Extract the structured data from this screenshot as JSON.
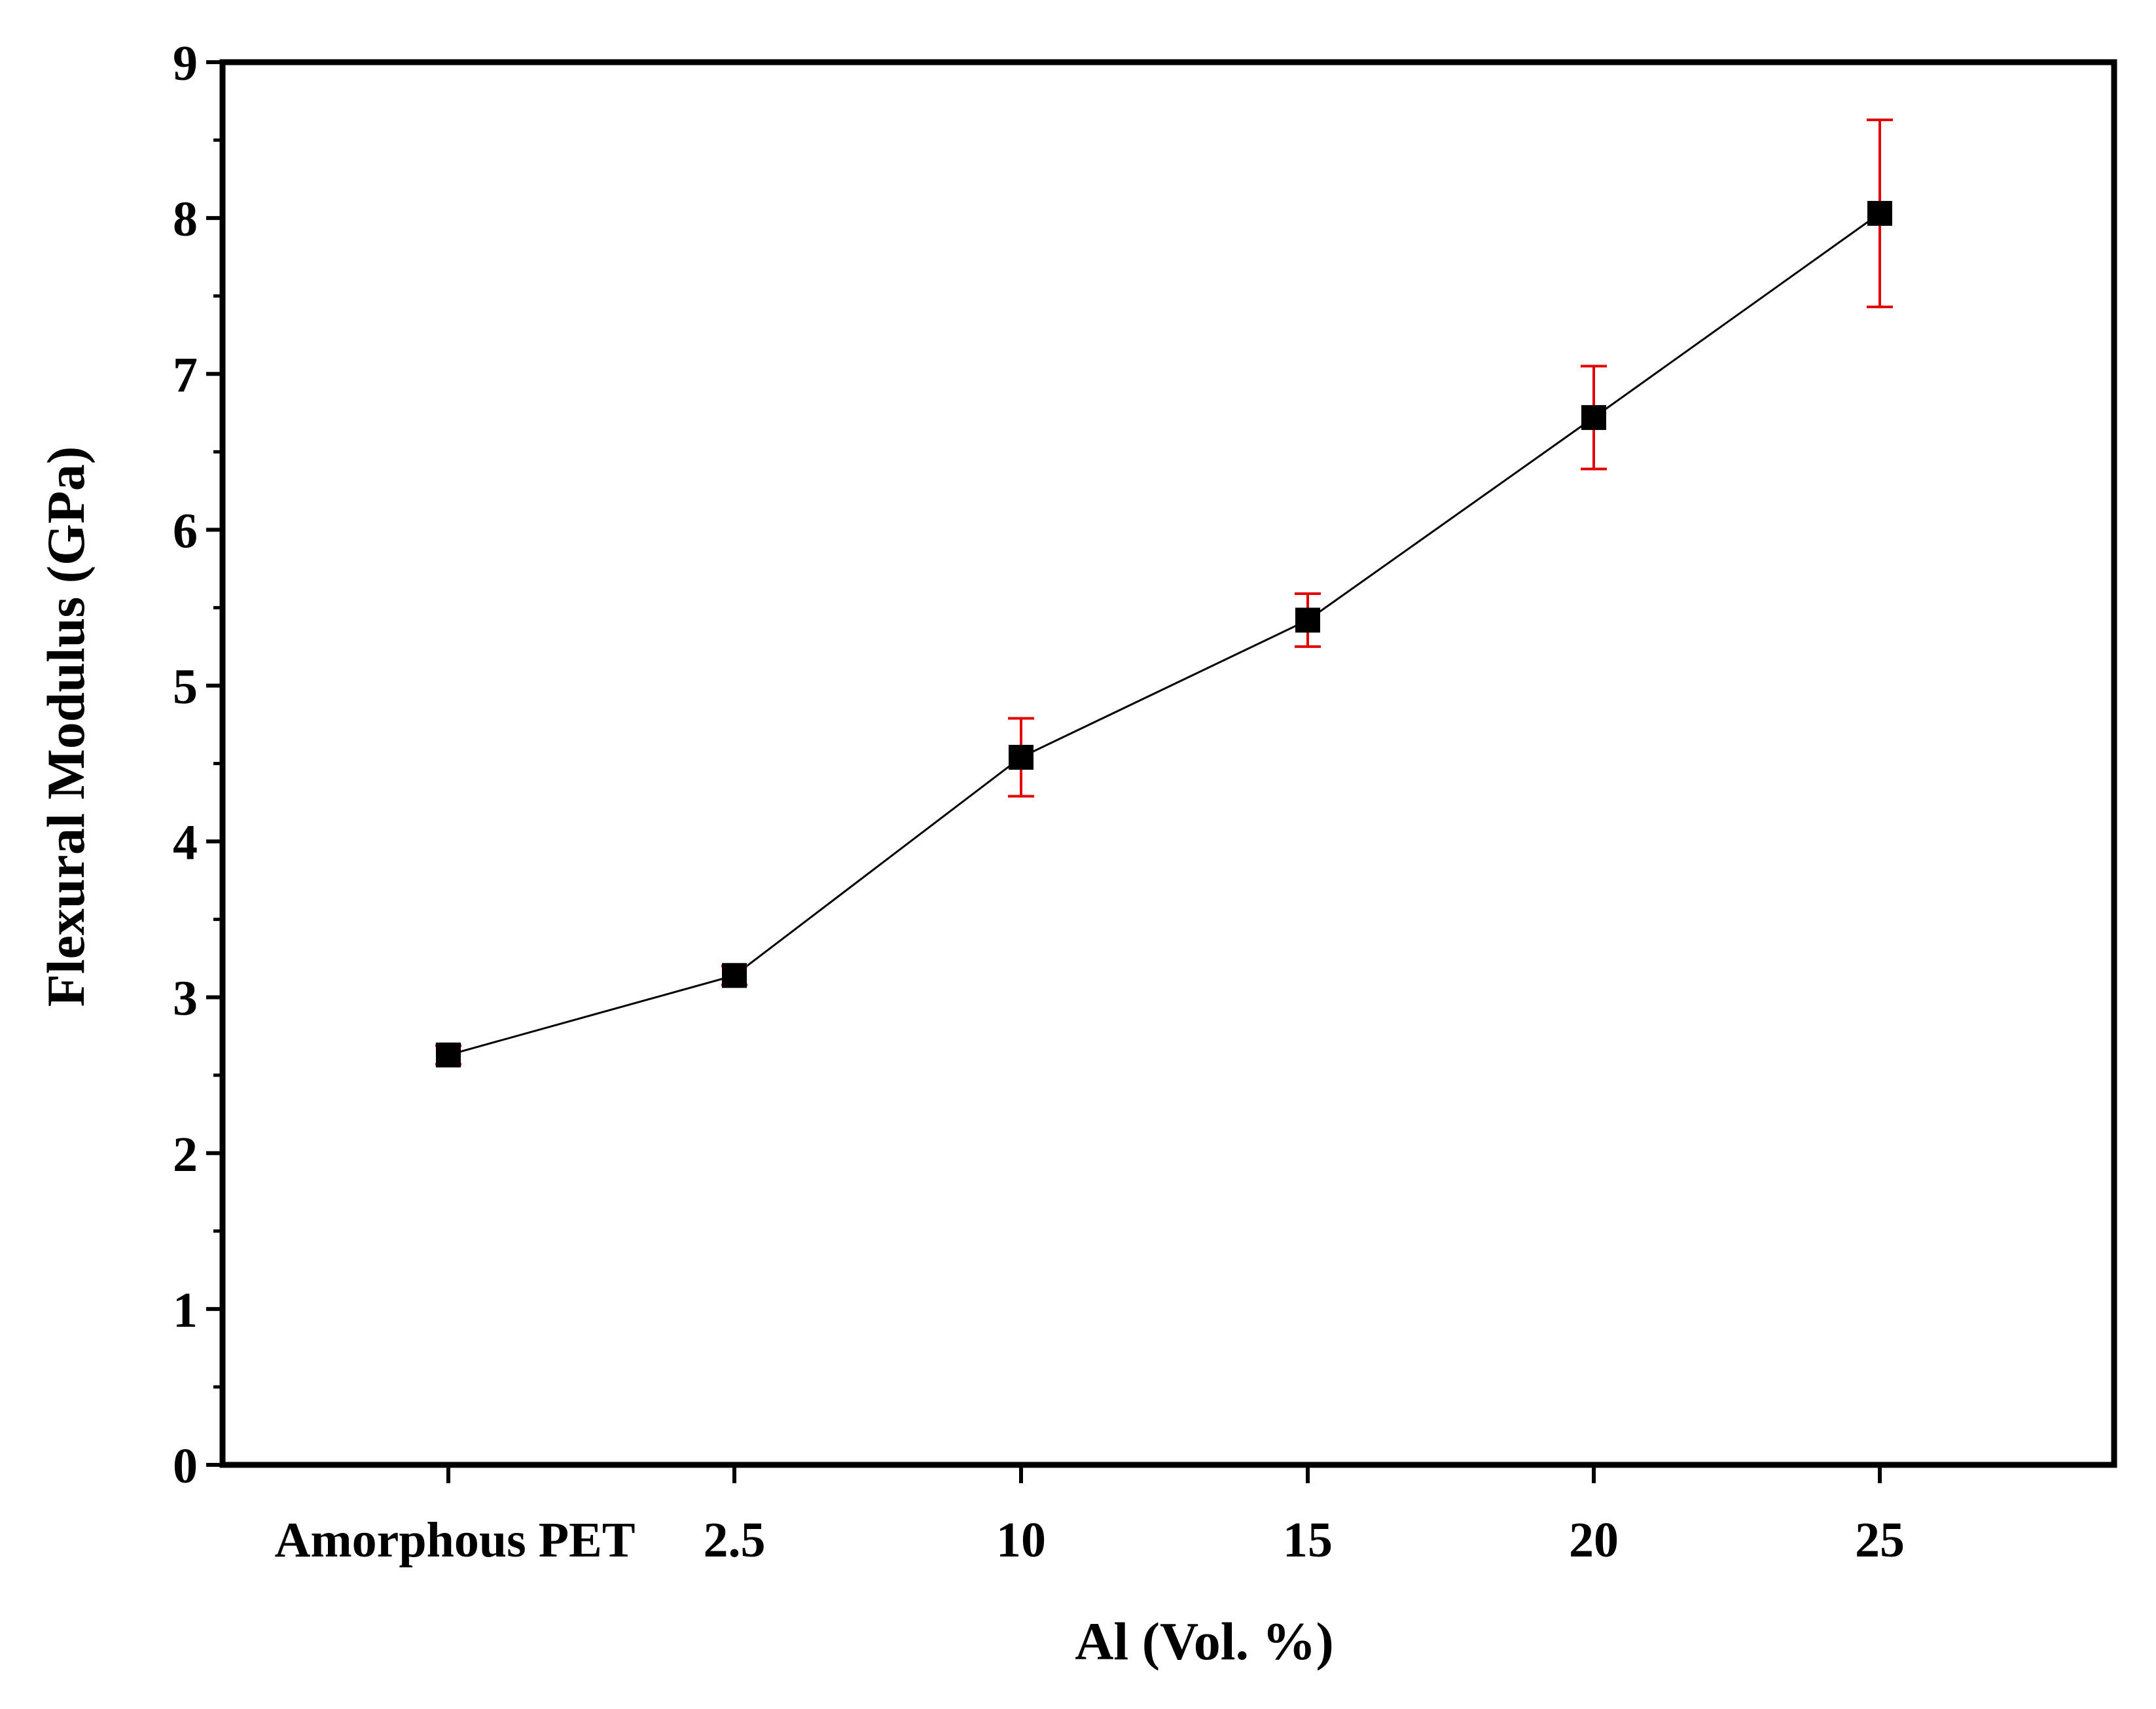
{
  "chart_data": {
    "type": "line",
    "title": "",
    "xlabel": "Al (Vol. %)",
    "ylabel": "Flexural Modulus (GPa)",
    "categories": [
      "Amorphous PET",
      "2.5",
      "10",
      "15",
      "20",
      "25"
    ],
    "series": [
      {
        "name": "Flexural Modulus",
        "values": [
          2.63,
          3.14,
          4.54,
          5.42,
          6.72,
          8.03
        ],
        "errors": [
          0.06,
          0.06,
          0.25,
          0.17,
          0.33,
          0.6
        ],
        "marker": "square"
      }
    ],
    "ylim": [
      0,
      9
    ],
    "yticks": [
      0,
      1,
      2,
      3,
      4,
      5,
      6,
      7,
      8,
      9
    ],
    "grid": false,
    "legend": "none"
  },
  "colors": {
    "line": "#000000",
    "marker": "#000000",
    "errorbar": "#e00000",
    "axis": "#000000",
    "background": "#ffffff"
  }
}
